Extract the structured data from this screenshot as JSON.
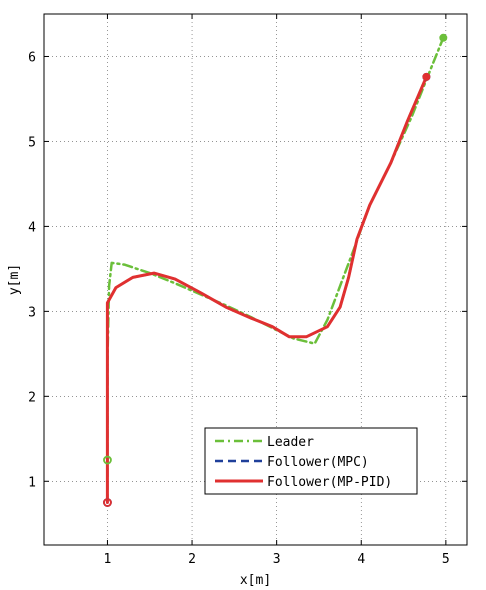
{
  "chart_data": {
    "type": "line",
    "xlabel": "x[m]",
    "ylabel": "y[m]",
    "xlim": [
      0.25,
      5.25
    ],
    "ylim": [
      0.25,
      6.5
    ],
    "xticks": [
      1,
      2,
      3,
      4,
      5
    ],
    "yticks": [
      1,
      2,
      3,
      4,
      5,
      6
    ],
    "grid": true,
    "legend_position": "bottom-right",
    "series": [
      {
        "name": "Leader",
        "color": "#6bbf3a",
        "style": "dashdot",
        "points": [
          [
            1.0,
            1.25
          ],
          [
            1.0,
            2.4
          ],
          [
            1.02,
            3.3
          ],
          [
            1.05,
            3.57
          ],
          [
            1.2,
            3.55
          ],
          [
            1.5,
            3.45
          ],
          [
            1.8,
            3.33
          ],
          [
            2.1,
            3.2
          ],
          [
            2.4,
            3.07
          ],
          [
            2.7,
            2.93
          ],
          [
            3.0,
            2.78
          ],
          [
            3.2,
            2.68
          ],
          [
            3.45,
            2.62
          ],
          [
            3.6,
            2.9
          ],
          [
            3.75,
            3.3
          ],
          [
            3.92,
            3.75
          ],
          [
            4.1,
            4.25
          ],
          [
            4.35,
            4.75
          ],
          [
            4.6,
            5.3
          ],
          [
            4.8,
            5.8
          ],
          [
            4.97,
            6.22
          ]
        ],
        "start_marker": [
          1.0,
          1.25
        ],
        "end_marker": [
          4.97,
          6.22
        ]
      },
      {
        "name": "Follower(MPC)",
        "color": "#1f3f9a",
        "style": "dashed",
        "points": [
          [
            1.0,
            0.75
          ],
          [
            1.0,
            2.0
          ],
          [
            1.0,
            3.1
          ],
          [
            1.1,
            3.28
          ],
          [
            1.3,
            3.4
          ],
          [
            1.55,
            3.45
          ],
          [
            1.8,
            3.38
          ],
          [
            2.1,
            3.22
          ],
          [
            2.4,
            3.05
          ],
          [
            2.7,
            2.92
          ],
          [
            2.95,
            2.82
          ],
          [
            3.15,
            2.7
          ],
          [
            3.35,
            2.7
          ],
          [
            3.6,
            2.82
          ],
          [
            3.75,
            3.05
          ],
          [
            3.85,
            3.4
          ],
          [
            3.95,
            3.85
          ],
          [
            4.1,
            4.25
          ],
          [
            4.35,
            4.75
          ],
          [
            4.55,
            5.25
          ],
          [
            4.77,
            5.76
          ]
        ],
        "start_marker": [
          1.0,
          0.75
        ],
        "end_marker": [
          4.77,
          5.76
        ]
      },
      {
        "name": "Follower(MP-PID)",
        "color": "#e03030",
        "style": "solid",
        "points": [
          [
            1.0,
            0.75
          ],
          [
            1.0,
            2.0
          ],
          [
            1.0,
            3.1
          ],
          [
            1.1,
            3.28
          ],
          [
            1.3,
            3.4
          ],
          [
            1.55,
            3.45
          ],
          [
            1.8,
            3.38
          ],
          [
            2.1,
            3.22
          ],
          [
            2.4,
            3.05
          ],
          [
            2.7,
            2.92
          ],
          [
            2.95,
            2.82
          ],
          [
            3.15,
            2.7
          ],
          [
            3.35,
            2.7
          ],
          [
            3.6,
            2.82
          ],
          [
            3.75,
            3.05
          ],
          [
            3.85,
            3.4
          ],
          [
            3.95,
            3.85
          ],
          [
            4.1,
            4.25
          ],
          [
            4.35,
            4.75
          ],
          [
            4.55,
            5.25
          ],
          [
            4.77,
            5.76
          ]
        ],
        "start_marker": [
          1.0,
          0.75
        ],
        "end_marker": [
          4.77,
          5.76
        ]
      }
    ]
  }
}
